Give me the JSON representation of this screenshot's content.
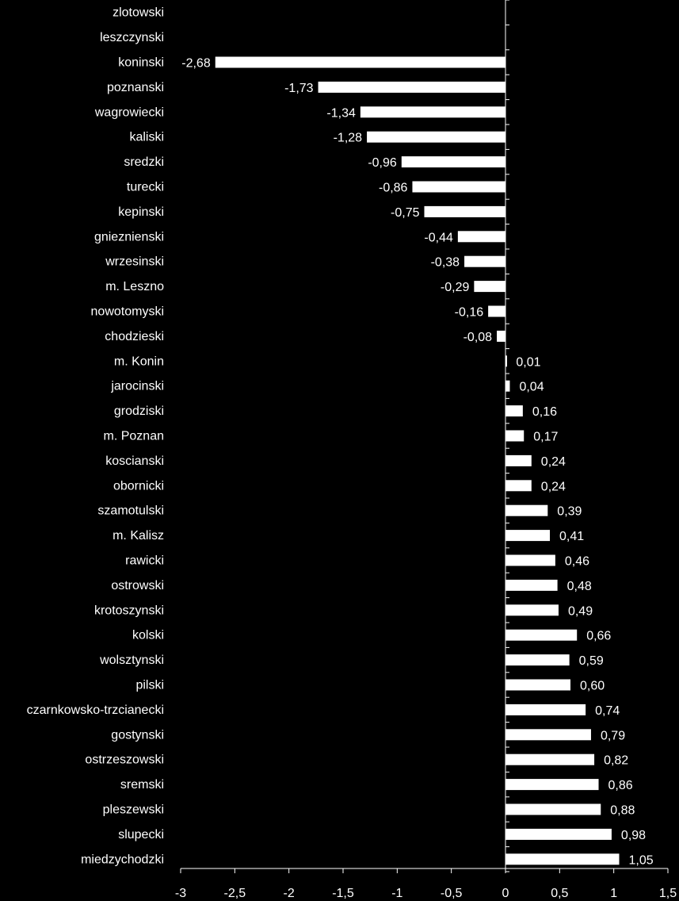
{
  "chart_data": {
    "type": "bar",
    "orientation": "horizontal",
    "title": "",
    "xlabel": "",
    "ylabel": "",
    "xlim": [
      -3,
      1.5
    ],
    "grid": false,
    "legend": "none",
    "x_ticks": [
      "-3",
      "-2,5",
      "-2",
      "-1,5",
      "-1",
      "-0,5",
      "0",
      "0,5",
      "1",
      "1,5"
    ],
    "categories": [
      "zlotowski",
      "leszczynski",
      "koninski",
      "poznanski",
      "wagrowiecki",
      "kaliski",
      "sredzki",
      "turecki",
      "kepinski",
      "gnieznienski",
      "wrzesinski",
      "m. Leszno",
      "nowotomyski",
      "chodzieski",
      "m. Konin",
      "jarocinski",
      "grodziski",
      "m. Poznan",
      "koscianski",
      "obornicki",
      "szamotulski",
      "m. Kalisz",
      "rawicki",
      "ostrowski",
      "krotoszynski",
      "kolski",
      "wolsztynski",
      "pilski",
      "czarnkowsko-trzcianecki",
      "gostynski",
      "ostrzeszowski",
      "sremski",
      "pleszewski",
      "slupecki",
      "miedzychodzki"
    ],
    "values": [
      null,
      null,
      -2.68,
      -1.73,
      -1.34,
      -1.28,
      -0.96,
      -0.86,
      -0.75,
      -0.44,
      -0.38,
      -0.29,
      -0.16,
      -0.08,
      0.01,
      0.04,
      0.16,
      0.17,
      0.24,
      0.24,
      0.39,
      0.41,
      0.46,
      0.48,
      0.49,
      0.66,
      0.59,
      0.6,
      0.74,
      0.79,
      0.82,
      0.86,
      0.88,
      0.98,
      1.05
    ],
    "value_labels": [
      "",
      "",
      "-2,68",
      "-1,73",
      "-1,34",
      "-1,28",
      "-0,96",
      "-0,86",
      "-0,75",
      "-0,44",
      "-0,38",
      "-0,29",
      "-0,16",
      "-0,08",
      "0,01",
      "0,04",
      "0,16",
      "0,17",
      "0,24",
      "0,24",
      "0,39",
      "0,41",
      "0,46",
      "0,48",
      "0,49",
      "0,66",
      "0,59",
      "0,60",
      "0,74",
      "0,79",
      "0,82",
      "0,86",
      "0,88",
      "0,98",
      "1,05"
    ],
    "bar_color": "#ffffff",
    "background_color": "#000000",
    "axis_color": "#ffffff"
  }
}
